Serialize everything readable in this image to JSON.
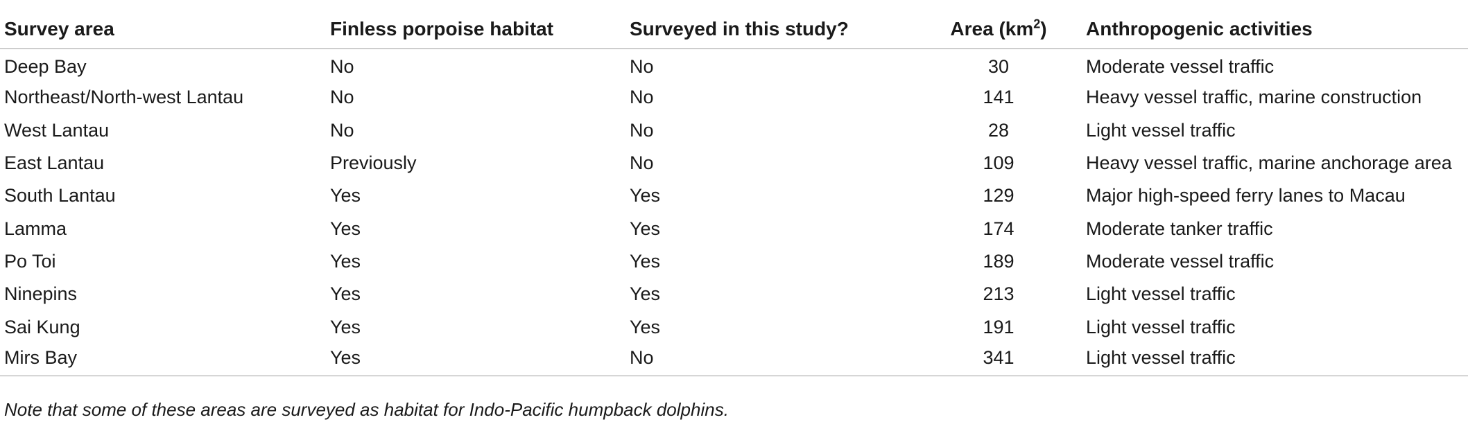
{
  "table": {
    "headers": {
      "survey_area": "Survey area",
      "finless_habitat": "Finless porpoise habitat",
      "surveyed": "Surveyed in this study?",
      "area_prefix": "Area (km",
      "area_sup": "2",
      "area_suffix": ")",
      "activities": "Anthropogenic activities"
    },
    "rows": [
      {
        "area_name": "Deep Bay",
        "habitat": "No",
        "surveyed": "No",
        "area": "30",
        "activities": "Moderate vessel traffic"
      },
      {
        "area_name": "Northeast/North-west Lantau",
        "habitat": "No",
        "surveyed": "No",
        "area": "141",
        "activities": "Heavy vessel traffic, marine construction"
      },
      {
        "area_name": "West Lantau",
        "habitat": "No",
        "surveyed": "No",
        "area": "28",
        "activities": "Light vessel traffic"
      },
      {
        "area_name": "East Lantau",
        "habitat": "Previously",
        "surveyed": "No",
        "area": "109",
        "activities": "Heavy vessel traffic, marine anchorage area"
      },
      {
        "area_name": "South Lantau",
        "habitat": "Yes",
        "surveyed": "Yes",
        "area": "129",
        "activities": "Major high-speed ferry lanes to Macau"
      },
      {
        "area_name": "Lamma",
        "habitat": "Yes",
        "surveyed": "Yes",
        "area": "174",
        "activities": "Moderate tanker traffic"
      },
      {
        "area_name": "Po Toi",
        "habitat": "Yes",
        "surveyed": "Yes",
        "area": "189",
        "activities": "Moderate vessel traffic"
      },
      {
        "area_name": "Ninepins",
        "habitat": "Yes",
        "surveyed": "Yes",
        "area": "213",
        "activities": "Light vessel traffic"
      },
      {
        "area_name": "Sai Kung",
        "habitat": "Yes",
        "surveyed": "Yes",
        "area": "191",
        "activities": "Light vessel traffic"
      },
      {
        "area_name": "Mirs Bay",
        "habitat": "Yes",
        "surveyed": "No",
        "area": "341",
        "activities": "Light vessel traffic"
      }
    ]
  },
  "note": "Note that some of these areas are surveyed as habitat for Indo-Pacific humpback dolphins."
}
